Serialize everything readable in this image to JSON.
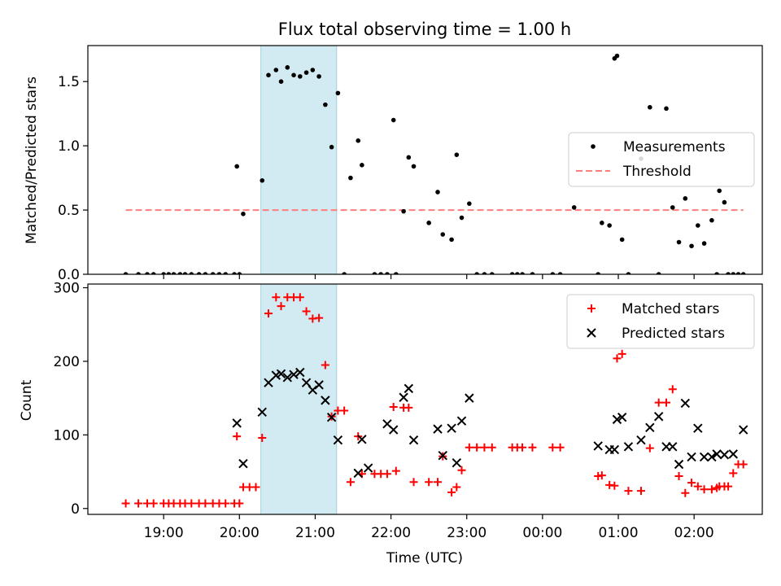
{
  "figure": {
    "title": "Flux total observing time = 1.00 h",
    "xlabel": "Time (UTC)"
  },
  "chart_data": [
    {
      "type": "scatter",
      "title": "Flux total observing time = 1.00 h",
      "ylabel": "Matched/Predicted stars",
      "xlim": [
        18.0,
        2.9
      ],
      "x_axis_note": "hours UTC; times after 00:00 belong to next day",
      "ylim": [
        0,
        1.78
      ],
      "yticks": [
        "0.0",
        "0.5",
        "1.0",
        "1.5"
      ],
      "xticks": [
        "19:00",
        "20:00",
        "21:00",
        "22:00",
        "23:00",
        "00:00",
        "01:00",
        "02:00"
      ],
      "highlight_band": {
        "x_start": "20:17",
        "x_end": "21:17",
        "color": "#add8e6"
      },
      "legend": {
        "position": "center-right",
        "entries": [
          "Measurements",
          "Threshold"
        ]
      },
      "threshold": {
        "name": "Threshold",
        "value": 0.5,
        "x_start": "18:30",
        "x_end": "02:30",
        "color": "#ff7f7f",
        "style": "dashed"
      },
      "series": [
        {
          "name": "Measurements",
          "color": "#000000",
          "marker": "dot",
          "x": [
            "18:30",
            "18:40",
            "18:47",
            "18:52",
            "19:00",
            "19:04",
            "19:08",
            "19:13",
            "19:17",
            "19:22",
            "19:28",
            "19:33",
            "19:39",
            "19:44",
            "19:49",
            "19:56",
            "20:00",
            "19:58",
            "20:03",
            "20:18",
            "20:23",
            "20:29",
            "20:33",
            "20:38",
            "20:43",
            "20:48",
            "20:53",
            "20:58",
            "21:03",
            "21:08",
            "21:13",
            "21:18",
            "21:23",
            "21:28",
            "21:34",
            "21:37",
            "21:47",
            "21:52",
            "21:57",
            "22:02",
            "22:04",
            "22:10",
            "22:14",
            "22:18",
            "22:30",
            "22:37",
            "22:41",
            "22:48",
            "22:52",
            "22:56",
            "23:02",
            "23:08",
            "23:14",
            "23:20",
            "23:36",
            "23:40",
            "23:44",
            "23:52",
            "24:08",
            "24:14",
            "24:25",
            "24:44",
            "24:47",
            "24:53",
            "24:57",
            "24:59",
            "25:03",
            "25:08",
            "25:18",
            "25:25",
            "25:32",
            "25:38",
            "25:43",
            "25:48",
            "25:53",
            "25:58",
            "26:03",
            "26:08",
            "26:14",
            "26:18",
            "26:20",
            "26:24",
            "26:27",
            "26:31",
            "26:35",
            "26:39"
          ],
          "y": [
            0.0,
            0.0,
            0.0,
            0.0,
            0.0,
            0.0,
            0.0,
            0.0,
            0.0,
            0.0,
            0.0,
            0.0,
            0.0,
            0.0,
            0.0,
            0.0,
            0.0,
            0.84,
            0.47,
            0.73,
            1.55,
            1.59,
            1.5,
            1.61,
            1.55,
            1.54,
            1.57,
            1.59,
            1.54,
            1.32,
            0.99,
            1.41,
            0.0,
            0.75,
            1.04,
            0.85,
            0.0,
            0.0,
            0.0,
            1.2,
            0.0,
            0.49,
            0.91,
            0.84,
            0.4,
            0.64,
            0.31,
            0.27,
            0.93,
            0.44,
            0.55,
            0.0,
            0.0,
            0.0,
            0.0,
            0.0,
            0.0,
            0.0,
            0.0,
            0.0,
            0.52,
            0.0,
            0.4,
            0.38,
            1.68,
            1.7,
            0.27,
            0.0,
            0.9,
            1.3,
            0.0,
            1.29,
            0.52,
            0.25,
            0.59,
            0.22,
            0.38,
            0.24,
            0.42,
            0.0,
            0.65,
            0.56,
            0.0,
            0.0,
            0.0,
            0.0
          ]
        }
      ]
    },
    {
      "type": "scatter",
      "ylabel": "Count",
      "xlabel": "Time (UTC)",
      "xlim": [
        18.0,
        2.9
      ],
      "ylim": [
        -8,
        305
      ],
      "yticks": [
        "0",
        "100",
        "200",
        "300"
      ],
      "xticks": [
        "19:00",
        "20:00",
        "21:00",
        "22:00",
        "23:00",
        "00:00",
        "01:00",
        "02:00"
      ],
      "highlight_band": {
        "x_start": "20:17",
        "x_end": "21:17",
        "color": "#add8e6"
      },
      "legend": {
        "position": "top-right",
        "entries": [
          "Matched stars",
          "Predicted stars"
        ]
      },
      "series": [
        {
          "name": "Matched stars",
          "color": "#ff0000",
          "marker": "plus",
          "x": [
            "18:30",
            "18:40",
            "18:47",
            "18:52",
            "19:00",
            "19:04",
            "19:08",
            "19:13",
            "19:17",
            "19:22",
            "19:28",
            "19:33",
            "19:39",
            "19:44",
            "19:49",
            "19:56",
            "20:00",
            "19:58",
            "20:03",
            "20:08",
            "20:13",
            "20:18",
            "20:23",
            "20:29",
            "20:33",
            "20:38",
            "20:43",
            "20:48",
            "20:53",
            "20:58",
            "21:03",
            "21:08",
            "21:13",
            "21:18",
            "21:23",
            "21:28",
            "21:34",
            "21:37",
            "21:47",
            "21:52",
            "21:57",
            "22:02",
            "22:04",
            "22:10",
            "22:14",
            "22:18",
            "22:30",
            "22:37",
            "22:41",
            "22:48",
            "22:52",
            "22:56",
            "23:02",
            "23:08",
            "23:14",
            "23:20",
            "23:36",
            "23:40",
            "23:44",
            "23:52",
            "24:08",
            "24:14",
            "24:44",
            "24:47",
            "24:53",
            "24:57",
            "24:59",
            "25:03",
            "25:08",
            "25:18",
            "25:25",
            "25:32",
            "25:38",
            "25:43",
            "25:48",
            "25:53",
            "25:58",
            "26:03",
            "26:08",
            "26:14",
            "26:18",
            "26:20",
            "26:24",
            "26:27",
            "26:31",
            "26:35",
            "26:39"
          ],
          "y": [
            7,
            7,
            7,
            7,
            7,
            7,
            7,
            7,
            7,
            7,
            7,
            7,
            7,
            7,
            7,
            7,
            7,
            98,
            29,
            29,
            29,
            96,
            265,
            287,
            275,
            287,
            287,
            287,
            268,
            258,
            259,
            195,
            125,
            133,
            133,
            36,
            98,
            47,
            47,
            47,
            47,
            138,
            51,
            137,
            137,
            36,
            36,
            36,
            71,
            22,
            29,
            52,
            83,
            83,
            83,
            83,
            83,
            83,
            83,
            83,
            83,
            83,
            44,
            45,
            32,
            31,
            204,
            210,
            24,
            24,
            82,
            144,
            144,
            162,
            44,
            21,
            35,
            30,
            26,
            26,
            28,
            30,
            30,
            30,
            48,
            60,
            60
          ]
        },
        {
          "name": "Predicted stars",
          "color": "#000000",
          "marker": "x",
          "x": [
            "19:58",
            "20:03",
            "20:18",
            "20:23",
            "20:29",
            "20:33",
            "20:38",
            "20:43",
            "20:48",
            "20:53",
            "20:58",
            "21:03",
            "21:08",
            "21:13",
            "21:18",
            "21:34",
            "21:37",
            "21:42",
            "21:57",
            "22:02",
            "22:10",
            "22:14",
            "22:18",
            "22:37",
            "22:41",
            "22:48",
            "22:52",
            "22:56",
            "23:02",
            "24:44",
            "24:53",
            "24:57",
            "24:59",
            "25:03",
            "25:08",
            "25:18",
            "25:25",
            "25:32",
            "25:38",
            "25:43",
            "25:48",
            "25:53",
            "25:58",
            "26:03",
            "26:08",
            "26:14",
            "26:18",
            "26:24",
            "26:31",
            "26:39"
          ],
          "y": [
            116,
            61,
            131,
            171,
            181,
            183,
            178,
            182,
            185,
            171,
            161,
            168,
            147,
            124,
            93,
            48,
            94,
            55,
            115,
            107,
            151,
            163,
            93,
            108,
            72,
            109,
            62,
            119,
            150,
            85,
            80,
            80,
            121,
            124,
            84,
            93,
            110,
            125,
            84,
            84,
            60,
            143,
            70,
            109,
            70,
            70,
            74,
            73,
            74,
            107
          ]
        }
      ]
    }
  ]
}
